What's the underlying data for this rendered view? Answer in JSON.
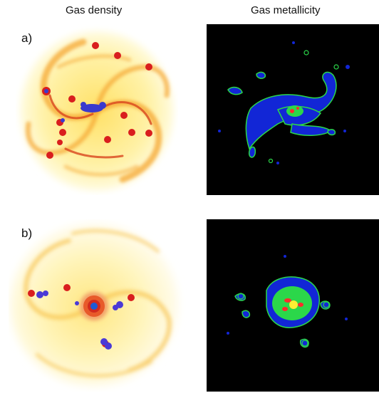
{
  "figure": {
    "column_titles": [
      "Gas density",
      "Gas metallicity"
    ],
    "rows": [
      {
        "label": "a)"
      },
      {
        "label": "b)"
      }
    ],
    "colors": {
      "density_pale": "#fff6b8",
      "density_mid": "#ffd84a",
      "density_arm": "#f29a2a",
      "density_dense": "#d2361c",
      "clump": "#d91e1e",
      "cold_core": "#3a3acd",
      "metal_bg": "#000000",
      "metal_low": "#1226d6",
      "metal_mid": "#2bd74a",
      "metal_high": "#ff2b2b",
      "metal_peak": "#ffee33"
    }
  }
}
